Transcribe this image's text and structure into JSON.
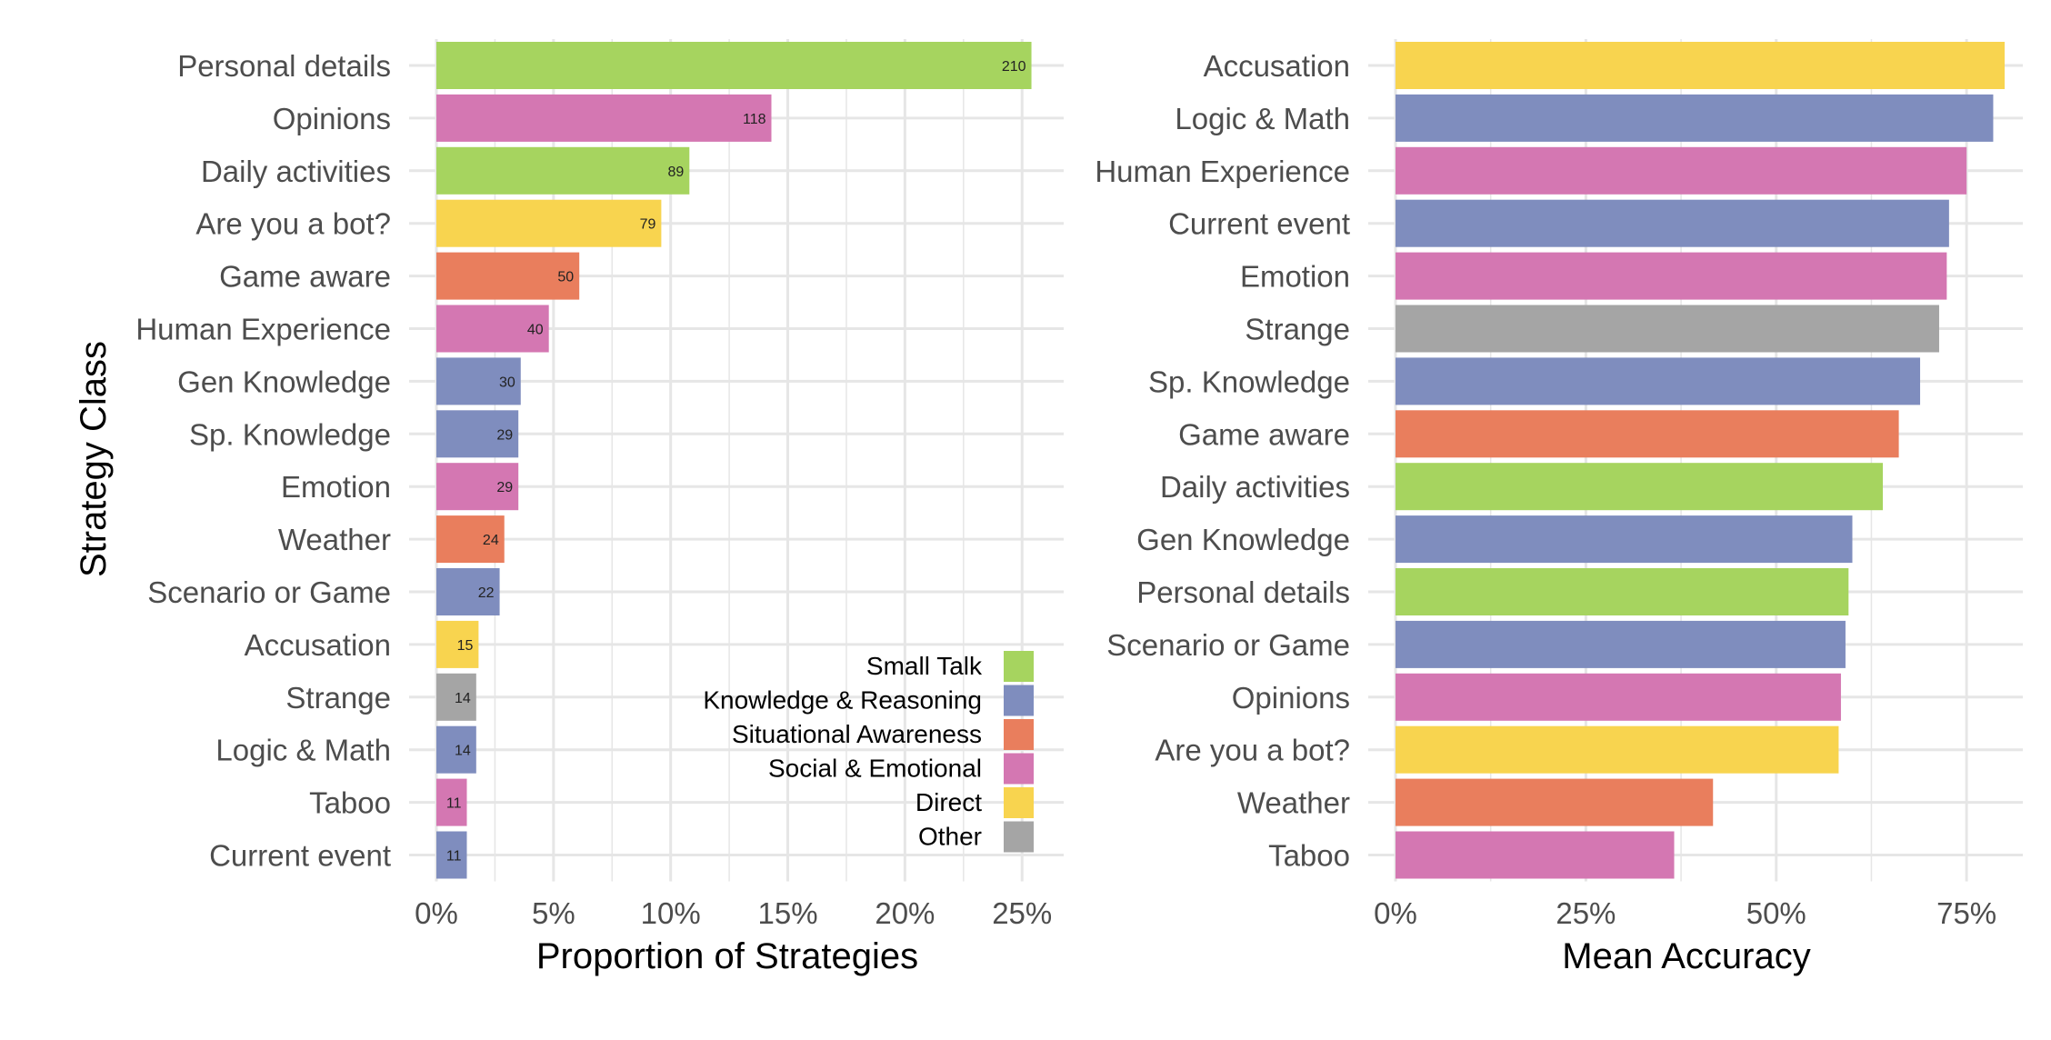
{
  "colors": {
    "Small Talk": "#A6D45F",
    "Knowledge & Reasoning": "#7F8DBE",
    "Situational Awareness": "#E97E5D",
    "Social & Emotional": "#D477B2",
    "Direct": "#F8D44F",
    "Other": "#A5A5A5",
    "grid": "#E6E6E6",
    "text": "#4D4D4D"
  },
  "legend": {
    "position": "inside-bottom-right",
    "items": [
      "Small Talk",
      "Knowledge & Reasoning",
      "Situational Awareness",
      "Social & Emotional",
      "Direct",
      "Other"
    ]
  },
  "chart_data": [
    {
      "type": "bar",
      "orientation": "horizontal",
      "xlabel": "Proportion of Strategies",
      "ylabel": "Strategy Class",
      "xlim": [
        0,
        0.26
      ],
      "xticks": [
        0,
        0.05,
        0.1,
        0.15,
        0.2,
        0.25
      ],
      "xtick_labels": [
        "0%",
        "5%",
        "10%",
        "15%",
        "20%",
        "25%"
      ],
      "grid": true,
      "categories": [
        "Personal details",
        "Opinions",
        "Daily activities",
        "Are you a bot?",
        "Game aware",
        "Human Experience",
        "Gen Knowledge",
        "Sp. Knowledge",
        "Emotion",
        "Weather",
        "Scenario or Game",
        "Accusation",
        "Strange",
        "Logic & Math",
        "Taboo",
        "Current event"
      ],
      "groups": [
        "Small Talk",
        "Social & Emotional",
        "Small Talk",
        "Direct",
        "Situational Awareness",
        "Social & Emotional",
        "Knowledge & Reasoning",
        "Knowledge & Reasoning",
        "Social & Emotional",
        "Situational Awareness",
        "Knowledge & Reasoning",
        "Direct",
        "Other",
        "Knowledge & Reasoning",
        "Social & Emotional",
        "Knowledge & Reasoning"
      ],
      "values": [
        0.254,
        0.143,
        0.108,
        0.096,
        0.061,
        0.048,
        0.036,
        0.035,
        0.035,
        0.029,
        0.027,
        0.018,
        0.017,
        0.017,
        0.013,
        0.013
      ],
      "counts": [
        210,
        118,
        89,
        79,
        50,
        40,
        30,
        29,
        29,
        24,
        22,
        15,
        14,
        14,
        11,
        11
      ]
    },
    {
      "type": "bar",
      "orientation": "horizontal",
      "xlabel": "Mean Accuracy",
      "xlim": [
        0,
        0.8
      ],
      "xticks": [
        0,
        0.25,
        0.5,
        0.75
      ],
      "xtick_labels": [
        "0%",
        "25%",
        "50%",
        "75%"
      ],
      "grid": true,
      "categories": [
        "Accusation",
        "Logic & Math",
        "Human Experience",
        "Current event",
        "Emotion",
        "Strange",
        "Sp. Knowledge",
        "Game aware",
        "Daily activities",
        "Gen Knowledge",
        "Personal details",
        "Scenario or Game",
        "Opinions",
        "Are you a bot?",
        "Weather",
        "Taboo"
      ],
      "groups": [
        "Direct",
        "Knowledge & Reasoning",
        "Social & Emotional",
        "Knowledge & Reasoning",
        "Social & Emotional",
        "Other",
        "Knowledge & Reasoning",
        "Situational Awareness",
        "Small Talk",
        "Knowledge & Reasoning",
        "Small Talk",
        "Knowledge & Reasoning",
        "Social & Emotional",
        "Direct",
        "Situational Awareness",
        "Social & Emotional"
      ],
      "values": [
        0.8,
        0.785,
        0.75,
        0.727,
        0.724,
        0.714,
        0.689,
        0.661,
        0.64,
        0.6,
        0.595,
        0.591,
        0.585,
        0.582,
        0.417,
        0.366
      ]
    }
  ]
}
